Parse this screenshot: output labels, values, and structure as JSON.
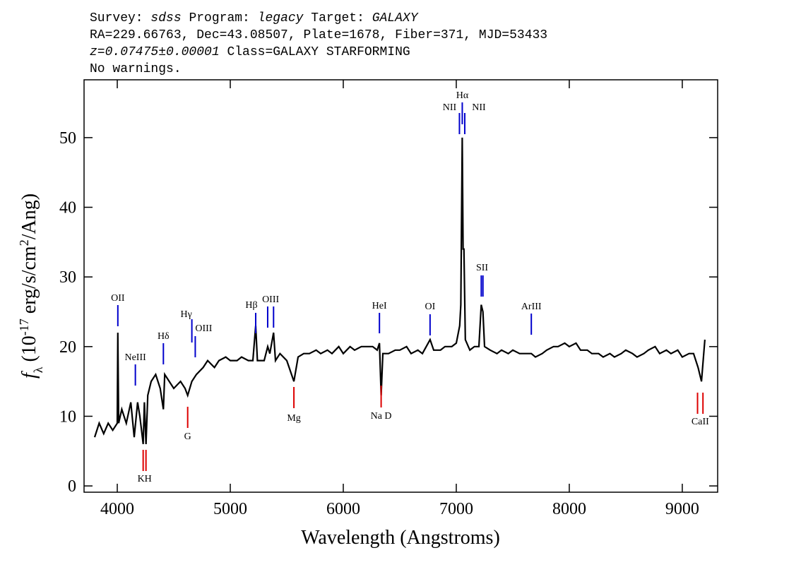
{
  "chart_data": {
    "type": "line",
    "header": [
      [
        {
          "text": "Survey: "
        },
        {
          "text": "sdss",
          "italic": true
        },
        {
          "text": " Program: "
        },
        {
          "text": "legacy",
          "italic": true
        },
        {
          "text": " Target: "
        },
        {
          "text": "GALAXY",
          "italic": true
        }
      ],
      [
        {
          "text": "RA=229.66763, Dec=43.08507, Plate=1678, Fiber=371, MJD=53433"
        }
      ],
      [
        {
          "text": "z=0.07475±0.00001",
          "italic": true
        },
        {
          "text": " Class=GALAXY STARFORMING"
        }
      ],
      [
        {
          "text": "No warnings."
        }
      ]
    ],
    "x_label": "Wavelength (Angstroms)",
    "y_label": [
      {
        "text": "f",
        "italic": true
      },
      {
        "text": "λ",
        "sub": true
      },
      {
        "text": " (10"
      },
      {
        "text": "-17",
        "sup": true
      },
      {
        "text": " erg/s/cm"
      },
      {
        "text": "2",
        "sup": true
      },
      {
        "text": "/Ang)"
      }
    ],
    "xlim": [
      3706,
      9313
    ],
    "ylim": [
      -0.9,
      58.3
    ],
    "xticks": [
      4000,
      5000,
      6000,
      7000,
      8000,
      9000
    ],
    "yticks": [
      0,
      10,
      20,
      30,
      40,
      50
    ],
    "series": [
      {
        "color": "#000000",
        "x": [
          3800,
          3840,
          3880,
          3920,
          3960,
          4000,
          4005,
          4012,
          4040,
          4080,
          4120,
          4150,
          4180,
          4200,
          4229,
          4240,
          4254,
          4270,
          4300,
          4340,
          4380,
          4408,
          4420,
          4460,
          4500,
          4560,
          4600,
          4623,
          4660,
          4700,
          4760,
          4800,
          4860,
          4900,
          4960,
          5000,
          5060,
          5100,
          5160,
          5200,
          5225,
          5240,
          5300,
          5331,
          5350,
          5383,
          5400,
          5440,
          5500,
          5563,
          5600,
          5650,
          5700,
          5760,
          5800,
          5860,
          5900,
          5960,
          6000,
          6060,
          6100,
          6160,
          6200,
          6260,
          6300,
          6320,
          6335,
          6350,
          6400,
          6460,
          6500,
          6560,
          6600,
          6660,
          6700,
          6768,
          6800,
          6860,
          6900,
          6960,
          7000,
          7030,
          7040,
          7053,
          7060,
          7068,
          7080,
          7120,
          7160,
          7200,
          7221,
          7236,
          7250,
          7300,
          7360,
          7400,
          7460,
          7500,
          7560,
          7600,
          7664,
          7700,
          7760,
          7800,
          7860,
          7900,
          7960,
          8000,
          8060,
          8100,
          8160,
          8200,
          8260,
          8300,
          8360,
          8400,
          8460,
          8500,
          8560,
          8600,
          8660,
          8700,
          8760,
          8800,
          8860,
          8900,
          8960,
          9000,
          9060,
          9100,
          9140,
          9170,
          9190,
          9200
        ],
        "values": [
          7,
          9,
          7.5,
          9,
          8,
          9,
          22,
          9,
          11,
          9,
          12,
          7,
          12,
          10,
          6,
          12,
          6,
          13,
          15,
          16,
          14,
          11,
          16,
          15,
          14,
          15,
          14,
          13,
          15,
          16,
          17,
          18,
          17,
          18,
          18.5,
          18,
          18,
          18.5,
          18,
          18,
          23,
          18,
          18,
          20,
          19,
          22,
          18,
          19,
          18,
          15,
          18.5,
          19,
          19,
          19.5,
          19,
          19.5,
          19,
          20,
          19,
          20,
          19.5,
          20,
          20,
          20,
          19.5,
          20.5,
          13,
          19,
          19,
          19.5,
          19.5,
          20,
          19,
          19.5,
          19,
          21,
          19.5,
          19.5,
          20,
          20,
          20.5,
          23,
          26,
          50,
          34,
          34,
          21,
          19.5,
          20,
          20,
          26,
          25,
          20,
          19.5,
          19,
          19.5,
          19,
          19.5,
          19,
          19,
          19,
          18.5,
          19,
          19.5,
          20,
          20,
          20.5,
          20,
          20.5,
          19.5,
          19.5,
          19,
          19,
          18.5,
          19,
          18.5,
          19,
          19.5,
          19,
          18.5,
          19,
          19.5,
          20,
          19,
          19.5,
          19,
          19.5,
          18.5,
          19,
          19,
          17,
          15,
          19,
          21
        ]
      }
    ],
    "emission_lines": [
      {
        "label": "OII",
        "x": [
          4005
        ]
      },
      {
        "label": "NeIII",
        "x": [
          4160
        ]
      },
      {
        "label": "Hδ",
        "x": [
          4408
        ]
      },
      {
        "label": "Hγ",
        "x": [
          4660
        ]
      },
      {
        "label": "OIII",
        "x": [
          4690
        ]
      },
      {
        "label": "Hβ",
        "x": [
          5225
        ]
      },
      {
        "label": "OIII",
        "x": [
          5331,
          5383
        ]
      },
      {
        "label": "HeI",
        "x": [
          6320
        ]
      },
      {
        "label": "OI",
        "x": [
          6768
        ]
      },
      {
        "label": "NII",
        "x": [
          7028
        ]
      },
      {
        "label": "Hα",
        "x": [
          7053
        ]
      },
      {
        "label": "NII",
        "x": [
          7075
        ]
      },
      {
        "label": "SII",
        "x": [
          7221,
          7236
        ]
      },
      {
        "label": "ArIII",
        "x": [
          7664
        ]
      }
    ],
    "absorption_lines": [
      {
        "label": "K",
        "x": [
          4229
        ]
      },
      {
        "label": "H",
        "x": [
          4254
        ]
      },
      {
        "label": "G",
        "x": [
          4623
        ]
      },
      {
        "label": "Mg",
        "x": [
          5563
        ]
      },
      {
        "label": "Na D",
        "x": [
          6335
        ]
      },
      {
        "label": "CaII",
        "x": [
          9135,
          9183
        ]
      }
    ],
    "emission_color": "#0000cc",
    "absorption_color": "#dd0000"
  }
}
